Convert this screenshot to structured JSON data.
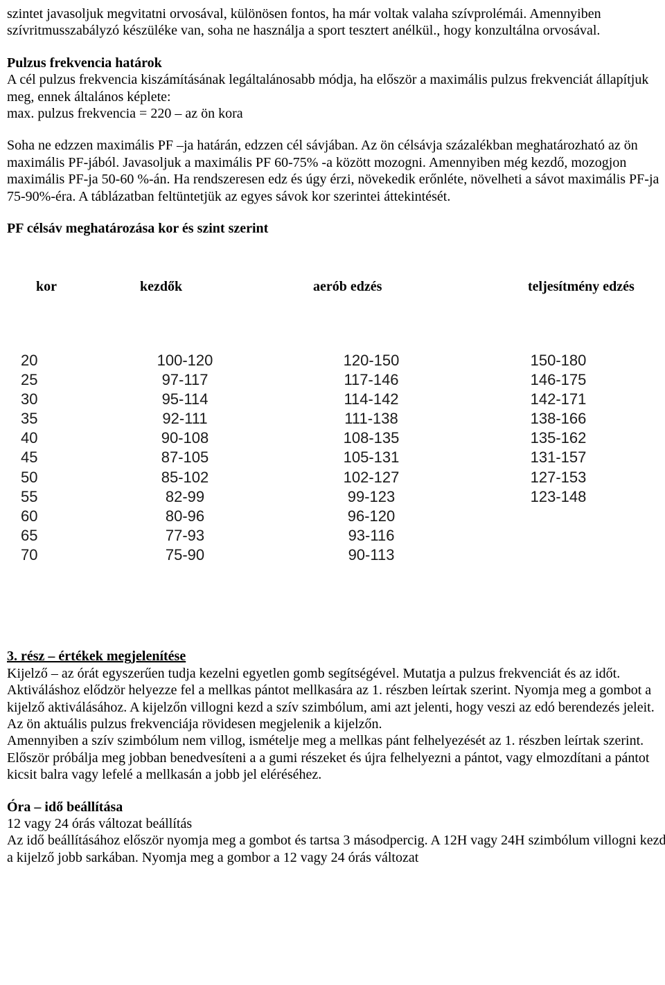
{
  "intro": {
    "p1": "szintet javasoljuk megvitatni orvosával, különösen fontos, ha már voltak valaha szívprolémái. Amennyiben szívritmusszabályzó készüléke van, soha ne használja a sport tesztert anélkül., hogy konzultálna orvosával."
  },
  "pulse_limits": {
    "title": "Pulzus frekvencia határok",
    "p1": "A cél pulzus frekvencia kiszámításának legáltalánosabb módja, ha először a maximális pulzus frekvenciát állapítjuk meg, ennek általános képlete:",
    "p2": "max. pulzus frekvencia = 220 – az ön kora",
    "p3": "Soha ne edzzen maximális PF –ja határán, edzzen cél sávjában. Az ön célsávja százalékban meghatározható az ön maximális PF-jából. Javasoljuk a maximális PF 60-75% -a között mozogni. Amennyiben még kezdő, mozogjon maximális PF-ja 50-60 %-án. Ha rendszeresen edz és úgy érzi, növekedik erőnléte, növelheti a sávot maximális PF-ja 75-90%-éra. A táblázatban feltüntetjük az egyes sávok kor szerintei áttekintését."
  },
  "pf_section_title": "PF célsáv meghatározása kor és szint szerint",
  "table": {
    "headers": {
      "age": "kor",
      "beginner": "kezdők",
      "aerobic": "aerób edzés",
      "performance": "teljesítmény edzés"
    },
    "rows": [
      {
        "age": "20",
        "beginner": "100-120",
        "aerobic": "120-150",
        "performance": "150-180"
      },
      {
        "age": "25",
        "beginner": "97-117",
        "aerobic": "117-146",
        "performance": "146-175"
      },
      {
        "age": "30",
        "beginner": "95-114",
        "aerobic": "114-142",
        "performance": "142-171"
      },
      {
        "age": "35",
        "beginner": "92-111",
        "aerobic": "111-138",
        "performance": "138-166"
      },
      {
        "age": "40",
        "beginner": "90-108",
        "aerobic": "108-135",
        "performance": "135-162"
      },
      {
        "age": "45",
        "beginner": "87-105",
        "aerobic": "105-131",
        "performance": "131-157"
      },
      {
        "age": "50",
        "beginner": "85-102",
        "aerobic": "102-127",
        "performance": "127-153"
      },
      {
        "age": "55",
        "beginner": "82-99",
        "aerobic": "99-123",
        "performance": "123-148"
      },
      {
        "age": "60",
        "beginner": "80-96",
        "aerobic": "96-120",
        "performance": ""
      },
      {
        "age": "65",
        "beginner": "77-93",
        "aerobic": "93-116",
        "performance": ""
      },
      {
        "age": "70",
        "beginner": "75-90",
        "aerobic": "90-113",
        "performance": ""
      }
    ]
  },
  "part3": {
    "title": "3. rész – értékek megjelenítése",
    "p1": "Kijelző – az órát egyszerűen tudja kezelni egyetlen gomb segítségével. Mutatja a pulzus frekvenciát és az időt. Aktiváláshoz elődzör helyezze fel a mellkas pántot mellkasára az 1. részben leírtak szerint. Nyomja meg a gombot a kijelző aktiválásához. A kijelzőn villogni kezd a szív szimbólum, ami azt jelenti, hogy veszi az edó berendezés jeleit. Az ön aktuális pulzus frekvenciája rövidesen megjelenik a kijelzőn.",
    "p2": "Amennyiben a szív szimbólum nem villog, ismételje meg a mellkas pánt felhelyezését az 1. részben leírtak szerint. Először próbálja meg jobban benedvesíteni a a gumi részeket és újra felhelyezni a pántot, vagy elmozdítani a pántot kicsit balra vagy lefelé a mellkasán a jobb jel eléréséhez."
  },
  "clock": {
    "title": "Óra – idő beállítása",
    "p1": "12 vagy 24 órás változat beállítás",
    "p2": "Az idő beállításához először nyomja meg a gombot és tartsa 3 másodpercig.  A 12H vagy 24H szimbólum villogni kezd a kijelző jobb sarkában. Nyomja meg a gombor a 12 vagy 24 órás változat"
  }
}
